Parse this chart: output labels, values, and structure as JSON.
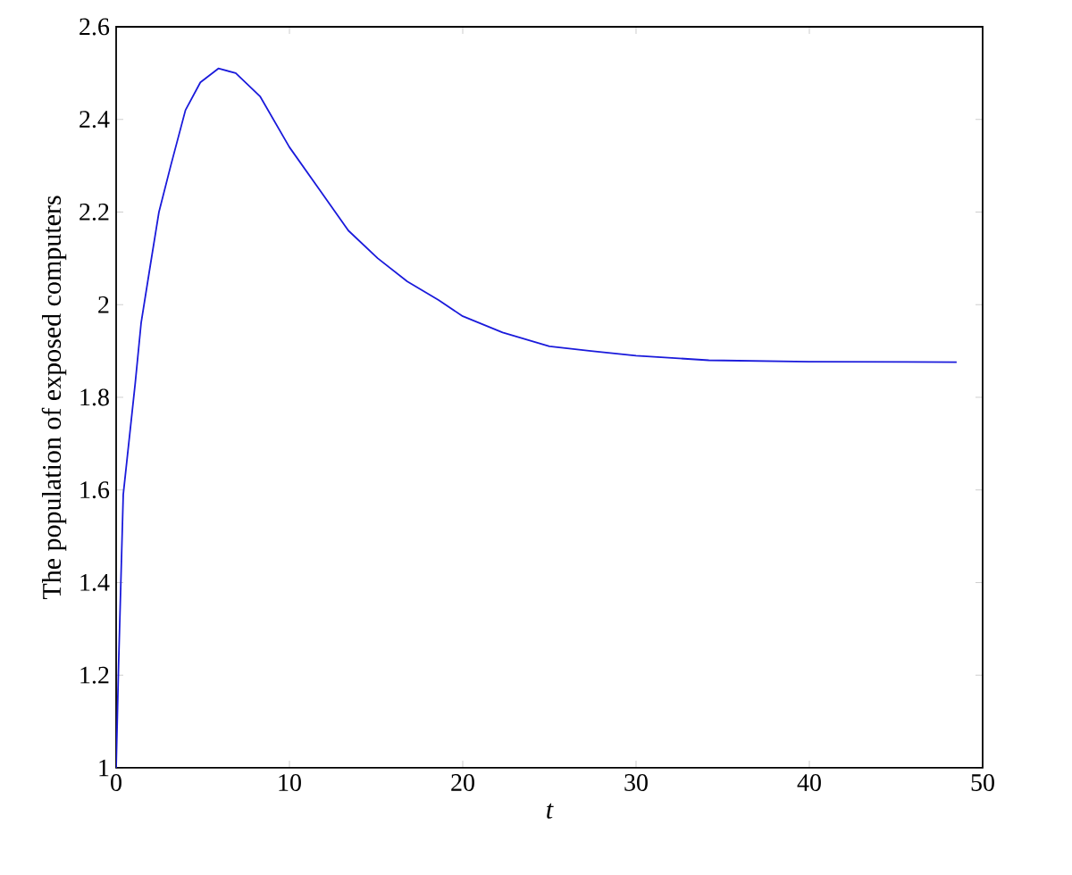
{
  "chart_data": {
    "type": "line",
    "xlabel": "t",
    "ylabel": "The population of exposed computers",
    "xlim": [
      0,
      50
    ],
    "ylim": [
      1,
      2.6
    ],
    "xticks": [
      0,
      10,
      20,
      30,
      40,
      50
    ],
    "yticks": [
      1,
      1.2,
      1.4,
      1.6,
      1.8,
      2,
      2.2,
      2.4,
      2.6
    ],
    "grid": false,
    "marker": "none",
    "line_style": "solid",
    "series": [
      {
        "color": "#1a1adb",
        "x": [
          0,
          0.14,
          0.41,
          1.1,
          1.44,
          1.95,
          2.47,
          3.15,
          4.0,
          4.86,
          5.9,
          6.9,
          8.3,
          10,
          11.7,
          13.4,
          15.1,
          16.8,
          18.6,
          20,
          22.3,
          25,
          27.4,
          30,
          34.2,
          40,
          48.5
        ],
        "values": [
          1,
          1.22,
          1.59,
          1.83,
          1.96,
          2.08,
          2.2,
          2.3,
          2.42,
          2.48,
          2.51,
          2.5,
          2.45,
          2.34,
          2.25,
          2.16,
          2.1,
          2.05,
          2.01,
          1.975,
          1.94,
          1.91,
          1.9,
          1.89,
          1.88,
          1.877,
          1.876
        ]
      }
    ]
  }
}
